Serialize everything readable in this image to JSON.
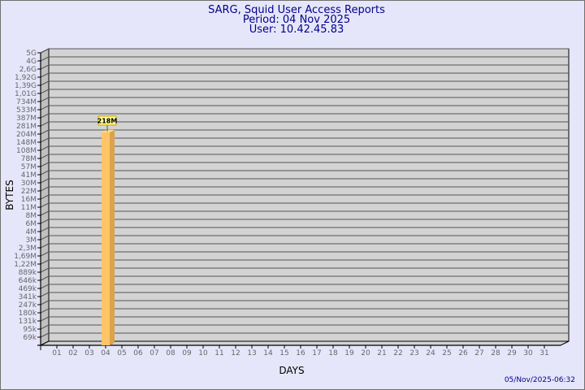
{
  "header": {
    "title": "SARG, Squid User Access Reports",
    "period": "Period: 04 Nov 2025",
    "user": "User: 10.42.45.83"
  },
  "footer": {
    "timestamp": "05/Nov/2025-06:32"
  },
  "chart_data": {
    "type": "bar",
    "title": "SARG, Squid User Access Reports",
    "xlabel": "DAYS",
    "ylabel": "BYTES",
    "y_scale": "log",
    "y_tick_labels": [
      "5G",
      "4G",
      "2,6G",
      "1,92G",
      "1,39G",
      "1,01G",
      "734M",
      "533M",
      "387M",
      "281M",
      "204M",
      "148M",
      "108M",
      "78M",
      "57M",
      "41M",
      "30M",
      "22M",
      "16M",
      "11M",
      "8M",
      "6M",
      "4M",
      "3M",
      "2,3M",
      "1,69M",
      "1,22M",
      "889k",
      "646k",
      "469k",
      "341k",
      "247k",
      "180k",
      "131k",
      "95k",
      "69k"
    ],
    "categories": [
      "01",
      "02",
      "03",
      "04",
      "05",
      "06",
      "07",
      "08",
      "09",
      "10",
      "11",
      "12",
      "13",
      "14",
      "15",
      "16",
      "17",
      "18",
      "19",
      "20",
      "21",
      "22",
      "23",
      "24",
      "25",
      "26",
      "27",
      "28",
      "29",
      "30",
      "31"
    ],
    "bars": [
      {
        "day": "04",
        "value": "218M",
        "label": "218M"
      }
    ],
    "grid": true,
    "colors": {
      "bar_front": "#ffc466",
      "bar_side": "#dca24c",
      "bar_top": "#ffe08a",
      "plot_bg": "#d3d3d3",
      "label_bg": "#ffff99",
      "label_border": "#c8a000"
    }
  }
}
